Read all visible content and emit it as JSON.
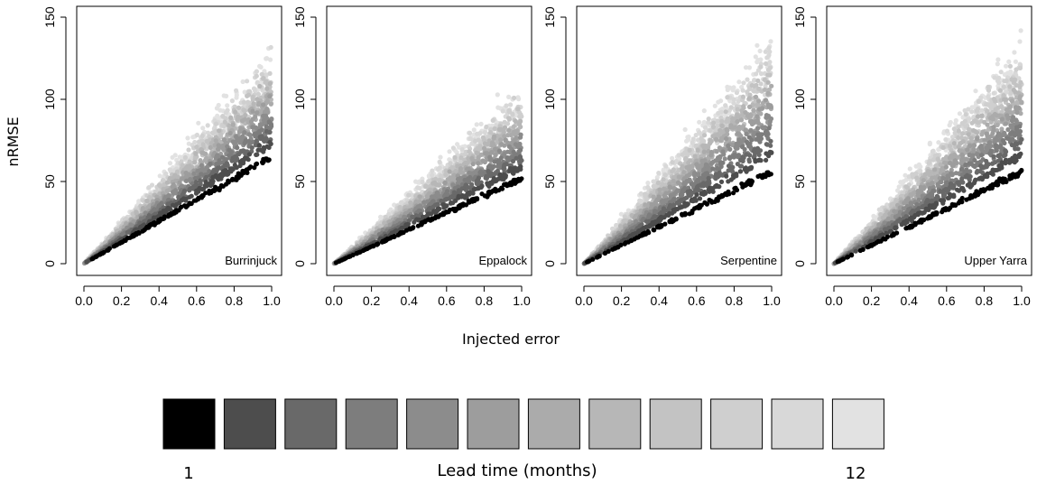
{
  "chart_data": {
    "type": "scatter",
    "xlabel": "Injected error",
    "ylabel": "nRMSE",
    "xlim": [
      0,
      1
    ],
    "ylim": [
      0,
      150
    ],
    "x_ticks": [
      "0.0",
      "0.2",
      "0.4",
      "0.6",
      "0.8",
      "1.0"
    ],
    "y_ticks": [
      "0",
      "50",
      "100",
      "150"
    ],
    "panels": [
      {
        "name": "Burrinjuck",
        "lower_slope": 65,
        "upper_slope": 120,
        "max_y": 150
      },
      {
        "name": "Eppalock",
        "lower_slope": 52,
        "upper_slope": 100,
        "max_y": 113
      },
      {
        "name": "Serpentine",
        "lower_slope": 56,
        "upper_slope": 128,
        "max_y": 140
      },
      {
        "name": "Upper Yarra",
        "lower_slope": 56,
        "upper_slope": 125,
        "max_y": 142
      }
    ],
    "legend": {
      "title": "Lead time (months)",
      "min_label": "1",
      "max_label": "12",
      "colors": [
        "#000000",
        "#4d4d4d",
        "#696969",
        "#7d7d7d",
        "#8c8c8c",
        "#9d9d9d",
        "#ababab",
        "#b7b7b7",
        "#c3c3c3",
        "#cfcfcf",
        "#d8d8d8",
        "#e2e2e2"
      ]
    }
  }
}
